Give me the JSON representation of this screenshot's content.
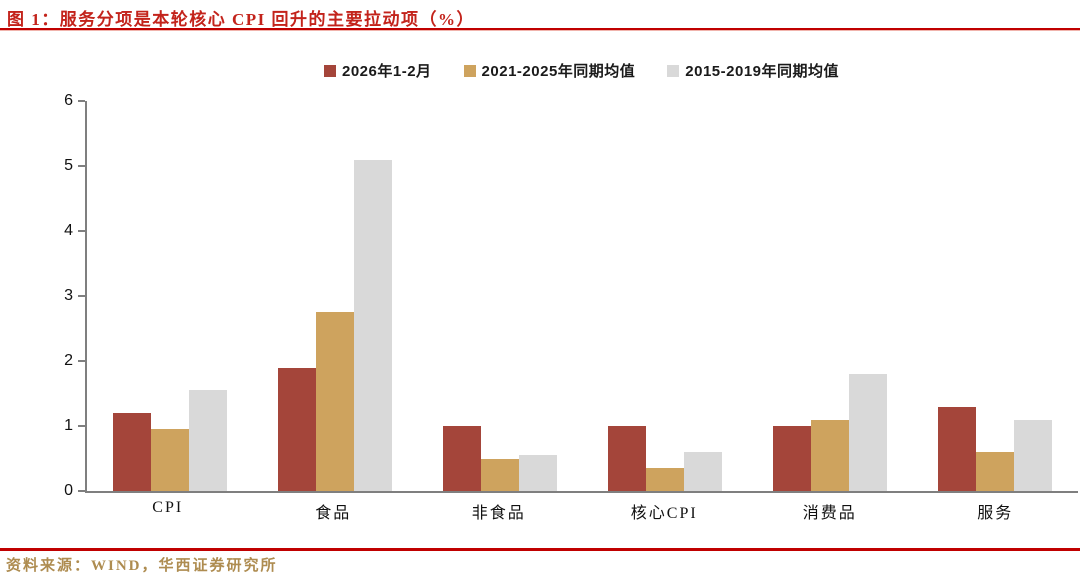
{
  "title": "图 1：服务分项是本轮核心 CPI 回升的主要拉动项（%）",
  "source": "资料来源：WIND，华西证券研究所",
  "colors": {
    "accent_red": "#C00000",
    "title_red": "#C3231B",
    "bar_red": "#A4453A",
    "bar_tan": "#CEA35E",
    "bar_gray": "#D9D9D9",
    "axis_gray": "#7F7F7F",
    "source_gold": "#AE8C50"
  },
  "chart_data": {
    "type": "bar",
    "title": "图 1：服务分项是本轮核心 CPI 回升的主要拉动项（%）",
    "categories": [
      "CPI",
      "食品",
      "非食品",
      "核心CPI",
      "消费品",
      "服务"
    ],
    "series": [
      {
        "name": "2026年1-2月",
        "color": "#A4453A",
        "values": [
          1.2,
          1.9,
          1.0,
          1.0,
          1.0,
          1.3
        ]
      },
      {
        "name": "2021-2025年同期均值",
        "color": "#CEA35E",
        "values": [
          0.95,
          2.75,
          0.5,
          0.35,
          1.1,
          0.6
        ]
      },
      {
        "name": "2015-2019年同期均值",
        "color": "#D9D9D9",
        "values": [
          1.55,
          5.1,
          0.55,
          0.6,
          1.8,
          1.1
        ]
      }
    ],
    "xlabel": "",
    "ylabel": "",
    "ylim": [
      0,
      6
    ],
    "yticks": [
      6,
      5,
      4,
      3,
      2,
      1,
      0
    ],
    "legend_position": "top",
    "grid": false
  }
}
